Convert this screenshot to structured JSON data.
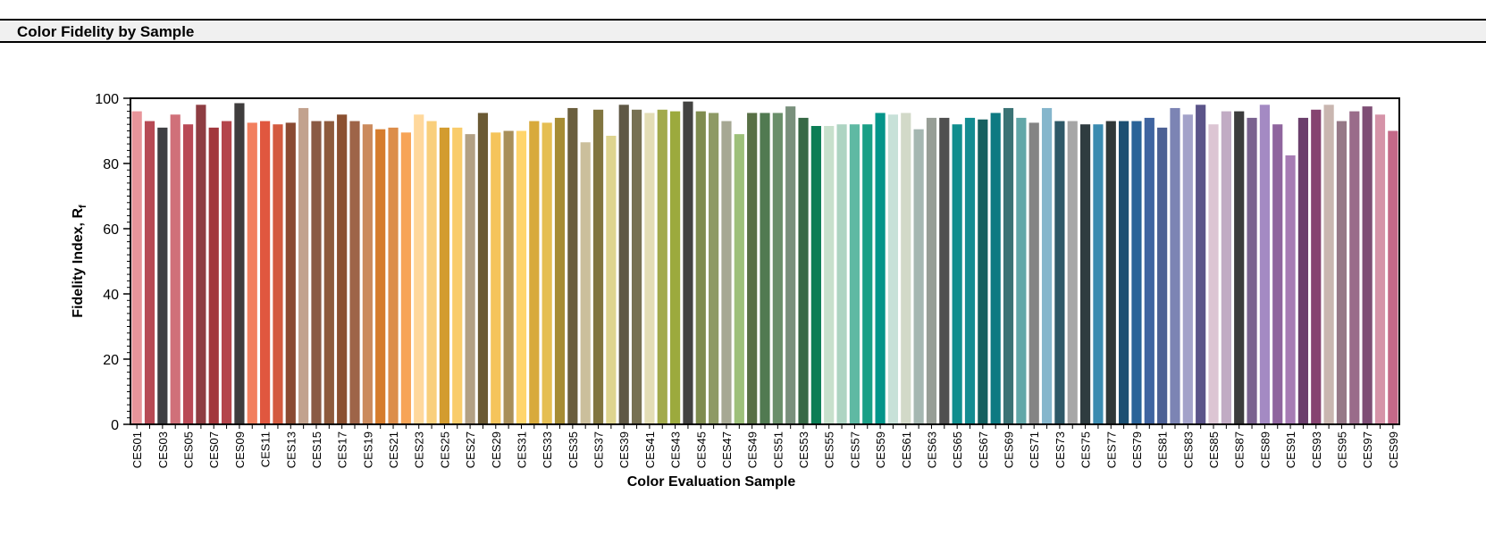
{
  "panel": {
    "title": "Color Fidelity by Sample"
  },
  "chart_data": {
    "type": "bar",
    "title": "",
    "xlabel": "Color Evaluation Sample",
    "ylabel": "Fidelity Index, R",
    "ylabel_subscript": "f",
    "ylim": [
      0,
      100
    ],
    "yticks": [
      0,
      20,
      40,
      60,
      80,
      100
    ],
    "grid": false,
    "legend": "none",
    "categories": [
      "CES01",
      "CES02",
      "CES03",
      "CES04",
      "CES05",
      "CES06",
      "CES07",
      "CES08",
      "CES09",
      "CES10",
      "CES11",
      "CES12",
      "CES13",
      "CES14",
      "CES15",
      "CES16",
      "CES17",
      "CES18",
      "CES19",
      "CES20",
      "CES21",
      "CES22",
      "CES23",
      "CES24",
      "CES25",
      "CES26",
      "CES27",
      "CES28",
      "CES29",
      "CES30",
      "CES31",
      "CES32",
      "CES33",
      "CES34",
      "CES35",
      "CES36",
      "CES37",
      "CES38",
      "CES39",
      "CES40",
      "CES41",
      "CES42",
      "CES43",
      "CES44",
      "CES45",
      "CES46",
      "CES47",
      "CES48",
      "CES49",
      "CES50",
      "CES51",
      "CES52",
      "CES53",
      "CES54",
      "CES55",
      "CES56",
      "CES57",
      "CES58",
      "CES59",
      "CES60",
      "CES61",
      "CES62",
      "CES63",
      "CES64",
      "CES65",
      "CES66",
      "CES67",
      "CES68",
      "CES69",
      "CES70",
      "CES71",
      "CES72",
      "CES73",
      "CES74",
      "CES75",
      "CES76",
      "CES77",
      "CES78",
      "CES79",
      "CES80",
      "CES81",
      "CES82",
      "CES83",
      "CES84",
      "CES85",
      "CES86",
      "CES87",
      "CES88",
      "CES89",
      "CES90",
      "CES91",
      "CES92",
      "CES93",
      "CES94",
      "CES95",
      "CES96",
      "CES97",
      "CES98",
      "CES99"
    ],
    "tick_labels_shown": [
      "CES01",
      "CES03",
      "CES05",
      "CES07",
      "CES09",
      "CES11",
      "CES13",
      "CES15",
      "CES17",
      "CES19",
      "CES21",
      "CES23",
      "CES25",
      "CES27",
      "CES29",
      "CES31",
      "CES33",
      "CES35",
      "CES37",
      "CES39",
      "CES41",
      "CES43",
      "CES45",
      "CES47",
      "CES49",
      "CES51",
      "CES53",
      "CES55",
      "CES57",
      "CES59",
      "CES61",
      "CES63",
      "CES65",
      "CES67",
      "CES69",
      "CES71",
      "CES73",
      "CES75",
      "CES77",
      "CES79",
      "CES81",
      "CES83",
      "CES85",
      "CES87",
      "CES89",
      "CES91",
      "CES93",
      "CES95",
      "CES97",
      "CES99"
    ],
    "values": [
      96,
      93,
      91,
      95,
      92,
      98,
      91,
      93,
      98.5,
      92.5,
      93,
      92,
      92.5,
      97,
      93,
      93,
      95,
      93,
      92,
      90.5,
      91,
      89.5,
      95,
      93,
      91,
      91,
      89,
      95.5,
      89.5,
      90,
      90,
      93,
      92.5,
      94,
      97,
      86.5,
      96.5,
      88.5,
      98,
      96.5,
      95.5,
      96.5,
      96,
      99,
      96,
      95.5,
      93,
      89,
      95.5,
      95.5,
      95.5,
      97.5,
      94,
      91.5,
      91.5,
      92,
      92,
      92,
      95.5,
      95,
      95.5,
      90.5,
      94,
      94,
      92,
      94,
      93.5,
      95.5,
      97,
      94,
      92.5,
      97,
      93,
      93,
      92,
      92,
      93,
      93,
      93,
      94,
      91,
      97,
      95,
      98,
      92,
      96,
      96,
      94,
      98,
      92,
      82.5,
      94,
      96.5,
      98,
      93,
      96,
      97.5,
      95,
      90
    ],
    "colors": [
      "#E8959A",
      "#B74A55",
      "#3F3F43",
      "#D07079",
      "#B94955",
      "#8E3D42",
      "#A2373C",
      "#B4454B",
      "#3F3D3D",
      "#F2805F",
      "#E0573F",
      "#D35A3F",
      "#8A4A32",
      "#C2A28E",
      "#8A5A44",
      "#8D5A3C",
      "#8B5030",
      "#9E6448",
      "#CB8A5C",
      "#D67C2C",
      "#DC8D4A",
      "#F7A457",
      "#FFD89C",
      "#F9CF7B",
      "#D39C2F",
      "#F9CC6B",
      "#B2A084",
      "#6B5A34",
      "#F5C45B",
      "#A88F5A",
      "#FFD56C",
      "#D8AA3B",
      "#E5BE52",
      "#A68C34",
      "#6A5E3E",
      "#CBBF9C",
      "#817540",
      "#DED48F",
      "#5F5845",
      "#777153",
      "#E3DDB5",
      "#A2AA4C",
      "#9CAA3D",
      "#434341",
      "#7F8C4F",
      "#8E9A65",
      "#A6A893",
      "#9DC07A",
      "#587045",
      "#517A51",
      "#6A8F6A",
      "#79907C",
      "#376845",
      "#0B7D55",
      "#C7E0CC",
      "#ADD4C2",
      "#5FB9A3",
      "#1A9F86",
      "#03958A",
      "#C7E1D8",
      "#D2D9C8",
      "#A5B7B1",
      "#979E96",
      "#505050",
      "#108E8E",
      "#138C91",
      "#15605F",
      "#0E7A82",
      "#3B7375",
      "#62A7A8",
      "#848484",
      "#85B6CC",
      "#2E5968",
      "#A6A6A6",
      "#2F3C40",
      "#3B8BB0",
      "#303839",
      "#1B4F72",
      "#2A6398",
      "#3F64A0",
      "#4C6094",
      "#7C84B4",
      "#A3A2C9",
      "#5B5489",
      "#DCC5D3",
      "#C1ABC4",
      "#3C3C3C",
      "#7A628F",
      "#A48AC3",
      "#8F659E",
      "#A77CB4",
      "#6B3F6C",
      "#864370",
      "#C9B6B0",
      "#967887",
      "#9A6C8A",
      "#7E4E75",
      "#D593A8",
      "#C46988"
    ]
  }
}
